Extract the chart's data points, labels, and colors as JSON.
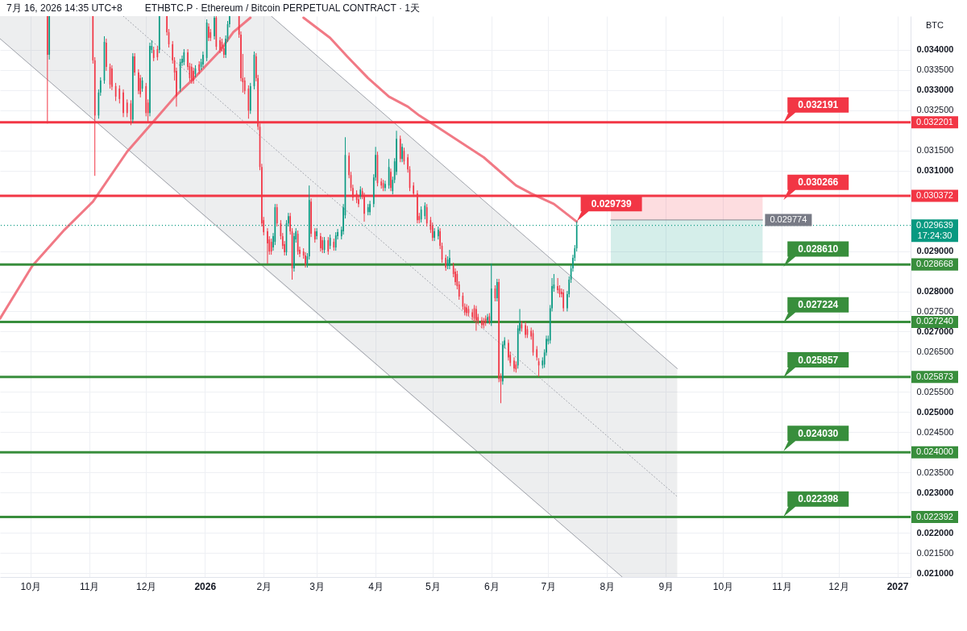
{
  "chart_data": {
    "type": "candlestick",
    "title": "ETHBTC.P · Ethereum / Bitcoin PERPETUAL CONTRACT · 1天",
    "ylabel": "BTC",
    "annotations": [
      "7月 16, 2026 14:35 UTC+8",
      {
        "text": "0.029739",
        "x": "2026-07-16",
        "y": 0.029739
      },
      {
        "text": "17:24:30",
        "x": "2027-01-08",
        "y": 0.029639
      },
      {
        "text": "0.032191",
        "x": "2026-11-02",
        "y": 0.032191
      },
      {
        "text": "0.030266",
        "x": "2026-11-02",
        "y": 0.030266
      },
      {
        "text": "0.028610",
        "x": "2026-11-02",
        "y": 0.02861
      },
      {
        "text": "0.027224",
        "x": "2026-11-02",
        "y": 0.027224
      },
      {
        "text": "0.025857",
        "x": "2026-11-02",
        "y": 0.025857
      },
      {
        "text": "0.024030",
        "x": "2026-11-02",
        "y": 0.02403
      },
      {
        "text": "0.022398",
        "x": "2026-11-02",
        "y": 0.022398
      }
    ],
    "xlim": [
      "2025-09-15",
      "2027-01-08"
    ],
    "ylim": [
      0.0209,
      0.03484
    ],
    "xticks": [
      {
        "value": "2025-10-01",
        "label": "10月"
      },
      {
        "value": "2025-11-01",
        "label": "11月"
      },
      {
        "value": "2025-12-01",
        "label": "12月"
      },
      {
        "value": "2026-01-01",
        "label": "2026"
      },
      {
        "value": "2026-02-01",
        "label": "2月"
      },
      {
        "value": "2026-03-01",
        "label": "3月"
      },
      {
        "value": "2026-04-01",
        "label": "4月"
      },
      {
        "value": "2026-05-01",
        "label": "5月"
      },
      {
        "value": "2026-06-01",
        "label": "6月"
      },
      {
        "value": "2026-07-01",
        "label": "7月"
      },
      {
        "value": "2026-08-01",
        "label": "8月"
      },
      {
        "value": "2026-09-01",
        "label": "9月"
      },
      {
        "value": "2026-10-01",
        "label": "10月"
      },
      {
        "value": "2026-11-01",
        "label": "11月"
      },
      {
        "value": "2026-12-01",
        "label": "12月"
      },
      {
        "value": "2027-01-01",
        "label": "2027"
      }
    ],
    "yticks": [
      {
        "value": 0.034,
        "label": "0.034000"
      },
      {
        "value": 0.0335,
        "label": "0.033500"
      },
      {
        "value": 0.033,
        "label": "0.033000"
      },
      {
        "value": 0.0325,
        "label": "0.032500"
      },
      {
        "value": 0.0315,
        "label": "0.031500"
      },
      {
        "value": 0.031,
        "label": "0.031000"
      },
      {
        "value": 0.029,
        "label": "0.029000"
      },
      {
        "value": 0.028,
        "label": "0.028000"
      },
      {
        "value": 0.0275,
        "label": "0.027500"
      },
      {
        "value": 0.027,
        "label": "0.027000"
      },
      {
        "value": 0.0265,
        "label": "0.026500"
      },
      {
        "value": 0.0255,
        "label": "0.025500"
      },
      {
        "value": 0.025,
        "label": "0.025000"
      },
      {
        "value": 0.0245,
        "label": "0.024500"
      },
      {
        "value": 0.0235,
        "label": "0.023500"
      },
      {
        "value": 0.023,
        "label": "0.023000"
      },
      {
        "value": 0.022,
        "label": "0.022000"
      },
      {
        "value": 0.0215,
        "label": "0.021500"
      },
      {
        "value": 0.021,
        "label": "0.021000"
      }
    ],
    "grid": true,
    "x": [
      "2025-10-10",
      "2025-10-11",
      "2025-11-03",
      "2025-11-04",
      "2025-11-06",
      "2025-11-07",
      "2025-11-09",
      "2025-11-10",
      "2025-11-12",
      "2025-11-13",
      "2025-11-15",
      "2025-11-17",
      "2025-11-19",
      "2025-11-21",
      "2025-11-23",
      "2025-11-24",
      "2025-11-25",
      "2025-11-27",
      "2025-11-28",
      "2025-11-29",
      "2025-12-01",
      "2025-12-02",
      "2025-12-03",
      "2025-12-04",
      "2025-12-05",
      "2025-12-07",
      "2025-12-08",
      "2025-12-12",
      "2025-12-13",
      "2025-12-15",
      "2025-12-16",
      "2025-12-17",
      "2025-12-19",
      "2025-12-20",
      "2025-12-21",
      "2025-12-23",
      "2025-12-24",
      "2025-12-25",
      "2025-12-26",
      "2025-12-27",
      "2025-12-29",
      "2025-12-30",
      "2025-12-31",
      "2026-01-02",
      "2026-01-03",
      "2026-01-04",
      "2026-01-06",
      "2026-01-07",
      "2026-01-09",
      "2026-01-10",
      "2026-01-11",
      "2026-01-12",
      "2026-01-13",
      "2026-01-14",
      "2026-01-19",
      "2026-01-20",
      "2026-01-21",
      "2026-01-22",
      "2026-01-24",
      "2026-01-25",
      "2026-01-27",
      "2026-01-28",
      "2026-01-29",
      "2026-01-30",
      "2026-01-31",
      "2026-02-01",
      "2026-02-03",
      "2026-02-04",
      "2026-02-05",
      "2026-02-06",
      "2026-02-07",
      "2026-02-08",
      "2026-02-10",
      "2026-02-11",
      "2026-02-12",
      "2026-02-13",
      "2026-02-14",
      "2026-02-15",
      "2026-02-16",
      "2026-02-17",
      "2026-02-18",
      "2026-02-19",
      "2026-02-20",
      "2026-02-22",
      "2026-02-23",
      "2026-02-24",
      "2026-02-25",
      "2026-02-26",
      "2026-02-28",
      "2026-03-01",
      "2026-03-03",
      "2026-03-04",
      "2026-03-05",
      "2026-03-07",
      "2026-03-08",
      "2026-03-10",
      "2026-03-11",
      "2026-03-12",
      "2026-03-14",
      "2026-03-15",
      "2026-03-16",
      "2026-03-18",
      "2026-03-19",
      "2026-03-20",
      "2026-03-22",
      "2026-03-23",
      "2026-03-24",
      "2026-03-25",
      "2026-03-26",
      "2026-03-28",
      "2026-03-29",
      "2026-03-31",
      "2026-04-01",
      "2026-04-02",
      "2026-04-04",
      "2026-04-05",
      "2026-04-06",
      "2026-04-08",
      "2026-04-09",
      "2026-04-10",
      "2026-04-11",
      "2026-04-12",
      "2026-04-14",
      "2026-04-15",
      "2026-04-16",
      "2026-04-18",
      "2026-04-19",
      "2026-04-21",
      "2026-04-23",
      "2026-04-24",
      "2026-04-25",
      "2026-04-27",
      "2026-04-28",
      "2026-04-30",
      "2026-05-01",
      "2026-05-02",
      "2026-05-04",
      "2026-05-05",
      "2026-05-06",
      "2026-05-08",
      "2026-05-09",
      "2026-05-10",
      "2026-05-12",
      "2026-05-13",
      "2026-05-14",
      "2026-05-15",
      "2026-05-17",
      "2026-05-18",
      "2026-05-19",
      "2026-05-20",
      "2026-05-22",
      "2026-05-23",
      "2026-05-24",
      "2026-05-25",
      "2026-05-27",
      "2026-05-28",
      "2026-05-29",
      "2026-05-30",
      "2026-05-31",
      "2026-06-01",
      "2026-06-03",
      "2026-06-04",
      "2026-06-05",
      "2026-06-06",
      "2026-06-07",
      "2026-06-08",
      "2026-06-10",
      "2026-06-11",
      "2026-06-13",
      "2026-06-14",
      "2026-06-15",
      "2026-06-16",
      "2026-06-17",
      "2026-06-19",
      "2026-06-20",
      "2026-06-22",
      "2026-06-23",
      "2026-06-25",
      "2026-06-26",
      "2026-06-28",
      "2026-06-29",
      "2026-06-30",
      "2026-07-01",
      "2026-07-02",
      "2026-07-03",
      "2026-07-04",
      "2026-07-06",
      "2026-07-07",
      "2026-07-08",
      "2026-07-09",
      "2026-07-11",
      "2026-07-12",
      "2026-07-13",
      "2026-07-14",
      "2026-07-15",
      "2026-07-16"
    ],
    "ohlc": [
      [
        0.03484,
        0.03484,
        0.03217,
        0.03388
      ],
      [
        0.03388,
        0.03484,
        0.03376,
        0.03484
      ],
      [
        0.03484,
        0.03484,
        0.03366,
        0.03374
      ],
      [
        0.03374,
        0.03382,
        0.03087,
        0.03237
      ],
      [
        0.03237,
        0.03302,
        0.03229,
        0.03294
      ],
      [
        0.03294,
        0.03332,
        0.03286,
        0.03324
      ],
      [
        0.03324,
        0.03434,
        0.03316,
        0.0342
      ],
      [
        0.03418,
        0.03428,
        0.03348,
        0.03358
      ],
      [
        0.03358,
        0.03366,
        0.03304,
        0.03314
      ],
      [
        0.03354,
        0.03362,
        0.033,
        0.03308
      ],
      [
        0.0331,
        0.03318,
        0.03273,
        0.03284
      ],
      [
        0.03304,
        0.03312,
        0.03267,
        0.03278
      ],
      [
        0.03294,
        0.03302,
        0.03233,
        0.03243
      ],
      [
        0.03269,
        0.03277,
        0.03233,
        0.03243
      ],
      [
        0.03267,
        0.03275,
        0.03213,
        0.03227
      ],
      [
        0.03227,
        0.03392,
        0.03219,
        0.03384
      ],
      [
        0.03384,
        0.03392,
        0.03336,
        0.03344
      ],
      [
        0.03344,
        0.03352,
        0.0329,
        0.03298
      ],
      [
        0.0333,
        0.03338,
        0.03282,
        0.0329
      ],
      [
        0.03304,
        0.03332,
        0.03296,
        0.03324
      ],
      [
        0.0331,
        0.03318,
        0.03235,
        0.03243
      ],
      [
        0.03269,
        0.03277,
        0.03219,
        0.03243
      ],
      [
        0.03243,
        0.03418,
        0.03235,
        0.0341
      ],
      [
        0.034,
        0.03424,
        0.03392,
        0.0341
      ],
      [
        0.034,
        0.03408,
        0.03372,
        0.0338
      ],
      [
        0.03402,
        0.0341,
        0.03374,
        0.03382
      ],
      [
        0.034,
        0.03484,
        0.03392,
        0.03484
      ],
      [
        0.03484,
        0.03484,
        0.03436,
        0.03444
      ],
      [
        0.03444,
        0.03452,
        0.03406,
        0.03414
      ],
      [
        0.03414,
        0.03422,
        0.03366,
        0.03374
      ],
      [
        0.03374,
        0.03382,
        0.03324,
        0.03344
      ],
      [
        0.03348,
        0.03356,
        0.03259,
        0.03284
      ],
      [
        0.03304,
        0.03378,
        0.03296,
        0.0337
      ],
      [
        0.03368,
        0.03386,
        0.0336,
        0.03378
      ],
      [
        0.0337,
        0.03402,
        0.03362,
        0.03394
      ],
      [
        0.03394,
        0.03402,
        0.0335,
        0.03358
      ],
      [
        0.0336,
        0.03368,
        0.03322,
        0.0333
      ],
      [
        0.03358,
        0.03366,
        0.03316,
        0.03324
      ],
      [
        0.03348,
        0.03356,
        0.03316,
        0.03324
      ],
      [
        0.0334,
        0.03362,
        0.03332,
        0.03354
      ],
      [
        0.03364,
        0.03372,
        0.0334,
        0.03348
      ],
      [
        0.03358,
        0.03378,
        0.0335,
        0.0337
      ],
      [
        0.03364,
        0.03396,
        0.03356,
        0.03388
      ],
      [
        0.0338,
        0.03476,
        0.03372,
        0.03468
      ],
      [
        0.03458,
        0.03466,
        0.03422,
        0.0343
      ],
      [
        0.03444,
        0.03452,
        0.03422,
        0.0343
      ],
      [
        0.03434,
        0.03484,
        0.03426,
        0.0348
      ],
      [
        0.0348,
        0.03484,
        0.034,
        0.03408
      ],
      [
        0.03424,
        0.03432,
        0.03392,
        0.034
      ],
      [
        0.0342,
        0.03428,
        0.03396,
        0.03404
      ],
      [
        0.03404,
        0.03412,
        0.0338,
        0.03388
      ],
      [
        0.03388,
        0.03436,
        0.0338,
        0.03428
      ],
      [
        0.03428,
        0.03472,
        0.0342,
        0.03464
      ],
      [
        0.03464,
        0.03484,
        0.03456,
        0.03484
      ],
      [
        0.03484,
        0.03484,
        0.0343,
        0.03438
      ],
      [
        0.03438,
        0.03446,
        0.03322,
        0.0333
      ],
      [
        0.0333,
        0.0339,
        0.03294,
        0.0332
      ],
      [
        0.03324,
        0.03332,
        0.0329,
        0.03298
      ],
      [
        0.03304,
        0.03312,
        0.03229,
        0.03249
      ],
      [
        0.03249,
        0.03318,
        0.03241,
        0.0331
      ],
      [
        0.0331,
        0.03396,
        0.03302,
        0.03388
      ],
      [
        0.03384,
        0.03392,
        0.03322,
        0.0333
      ],
      [
        0.0333,
        0.03338,
        0.03201,
        0.03209
      ],
      [
        0.03209,
        0.03217,
        0.03101,
        0.03109
      ],
      [
        0.03109,
        0.03117,
        0.02961,
        0.02969
      ],
      [
        0.02977,
        0.02985,
        0.02939,
        0.02947
      ],
      [
        0.02949,
        0.02957,
        0.02869,
        0.02919
      ],
      [
        0.02929,
        0.02937,
        0.02891,
        0.02899
      ],
      [
        0.02923,
        0.02931,
        0.02891,
        0.02899
      ],
      [
        0.02909,
        0.02945,
        0.02901,
        0.02937
      ],
      [
        0.02923,
        0.03017,
        0.02915,
        0.03009
      ],
      [
        0.03009,
        0.03017,
        0.02961,
        0.02969
      ],
      [
        0.02969,
        0.02977,
        0.02929,
        0.02937
      ],
      [
        0.02937,
        0.02945,
        0.02905,
        0.02913
      ],
      [
        0.02917,
        0.02925,
        0.02889,
        0.02897
      ],
      [
        0.02897,
        0.02977,
        0.02889,
        0.02969
      ],
      [
        0.02969,
        0.02995,
        0.02961,
        0.02987
      ],
      [
        0.02987,
        0.02995,
        0.02941,
        0.02949
      ],
      [
        0.02949,
        0.02957,
        0.02829,
        0.02857
      ],
      [
        0.02857,
        0.02945,
        0.02849,
        0.02937
      ],
      [
        0.02929,
        0.02957,
        0.02921,
        0.02949
      ],
      [
        0.02943,
        0.02951,
        0.02891,
        0.02899
      ],
      [
        0.02903,
        0.02911,
        0.02885,
        0.02893
      ],
      [
        0.02899,
        0.02907,
        0.02881,
        0.02889
      ],
      [
        0.02889,
        0.02897,
        0.02859,
        0.02867
      ],
      [
        0.02867,
        0.02895,
        0.02859,
        0.02887
      ],
      [
        0.02887,
        0.03063,
        0.02879,
        0.03027
      ],
      [
        0.03023,
        0.03031,
        0.02935,
        0.02943
      ],
      [
        0.02949,
        0.02957,
        0.02921,
        0.02929
      ],
      [
        0.02937,
        0.02957,
        0.02929,
        0.02949
      ],
      [
        0.02937,
        0.02945,
        0.02899,
        0.02907
      ],
      [
        0.02927,
        0.02935,
        0.02895,
        0.02903
      ],
      [
        0.02903,
        0.02935,
        0.02895,
        0.02927
      ],
      [
        0.02927,
        0.02935,
        0.02891,
        0.02899
      ],
      [
        0.02913,
        0.02941,
        0.02905,
        0.02933
      ],
      [
        0.02923,
        0.02931,
        0.02901,
        0.02909
      ],
      [
        0.02909,
        0.02947,
        0.02901,
        0.02939
      ],
      [
        0.02937,
        0.02955,
        0.02929,
        0.02947
      ],
      [
        0.02937,
        0.02961,
        0.02929,
        0.02953
      ],
      [
        0.02949,
        0.03017,
        0.02941,
        0.03009
      ],
      [
        0.02989,
        0.03183,
        0.02981,
        0.03139
      ],
      [
        0.03137,
        0.03145,
        0.03081,
        0.03089
      ],
      [
        0.03089,
        0.03097,
        0.03049,
        0.03057
      ],
      [
        0.03057,
        0.03065,
        0.03025,
        0.03033
      ],
      [
        0.03043,
        0.03051,
        0.03019,
        0.03027
      ],
      [
        0.03029,
        0.03037,
        0.03009,
        0.03017
      ],
      [
        0.03037,
        0.03061,
        0.03029,
        0.03053
      ],
      [
        0.03049,
        0.03057,
        0.03029,
        0.03037
      ],
      [
        0.03037,
        0.03045,
        0.02973,
        0.02993
      ],
      [
        0.02997,
        0.03017,
        0.02989,
        0.03009
      ],
      [
        0.02997,
        0.03025,
        0.02989,
        0.03017
      ],
      [
        0.03017,
        0.03091,
        0.03009,
        0.03083
      ],
      [
        0.03083,
        0.03159,
        0.03075,
        0.03139
      ],
      [
        0.03139,
        0.03147,
        0.03061,
        0.03069
      ],
      [
        0.03073,
        0.03081,
        0.03055,
        0.03063
      ],
      [
        0.03069,
        0.03077,
        0.03049,
        0.03057
      ],
      [
        0.03057,
        0.03075,
        0.03049,
        0.03067
      ],
      [
        0.03063,
        0.03129,
        0.03055,
        0.03109
      ],
      [
        0.03097,
        0.03105,
        0.03049,
        0.03057
      ],
      [
        0.03049,
        0.03085,
        0.03041,
        0.03077
      ],
      [
        0.03077,
        0.03131,
        0.03069,
        0.03123
      ],
      [
        0.03097,
        0.03199,
        0.03089,
        0.03179
      ],
      [
        0.03179,
        0.03187,
        0.03121,
        0.03129
      ],
      [
        0.03129,
        0.03167,
        0.03121,
        0.03159
      ],
      [
        0.03149,
        0.03157,
        0.03115,
        0.03123
      ],
      [
        0.03133,
        0.03141,
        0.03095,
        0.03103
      ],
      [
        0.03103,
        0.03111,
        0.03049,
        0.03057
      ],
      [
        0.03063,
        0.03071,
        0.03035,
        0.03043
      ],
      [
        0.03043,
        0.03051,
        0.02969,
        0.02977
      ],
      [
        0.02987,
        0.02995,
        0.02969,
        0.02977
      ],
      [
        0.02979,
        0.03011,
        0.02971,
        0.03003
      ],
      [
        0.02987,
        0.03021,
        0.02979,
        0.03013
      ],
      [
        0.03009,
        0.03017,
        0.02961,
        0.02969
      ],
      [
        0.02977,
        0.02985,
        0.02945,
        0.02953
      ],
      [
        0.02963,
        0.02971,
        0.02925,
        0.02933
      ],
      [
        0.02933,
        0.02957,
        0.02925,
        0.02949
      ],
      [
        0.02937,
        0.02961,
        0.02929,
        0.02953
      ],
      [
        0.02949,
        0.02957,
        0.02905,
        0.02913
      ],
      [
        0.02913,
        0.02921,
        0.02871,
        0.02879
      ],
      [
        0.02883,
        0.02891,
        0.02851,
        0.02859
      ],
      [
        0.02863,
        0.02887,
        0.02855,
        0.02879
      ],
      [
        0.02863,
        0.02903,
        0.02855,
        0.02883
      ],
      [
        0.02863,
        0.02871,
        0.02835,
        0.02843
      ],
      [
        0.02849,
        0.02857,
        0.02815,
        0.02823
      ],
      [
        0.02843,
        0.02851,
        0.02805,
        0.02813
      ],
      [
        0.02817,
        0.02825,
        0.02779,
        0.02787
      ],
      [
        0.02789,
        0.02797,
        0.02754,
        0.02762
      ],
      [
        0.02762,
        0.0277,
        0.0274,
        0.02748
      ],
      [
        0.0276,
        0.02768,
        0.02738,
        0.02746
      ],
      [
        0.02756,
        0.02764,
        0.02738,
        0.02746
      ],
      [
        0.02748,
        0.02756,
        0.02728,
        0.02736
      ],
      [
        0.02758,
        0.02766,
        0.02724,
        0.02732
      ],
      [
        0.02756,
        0.02764,
        0.02702,
        0.02728
      ],
      [
        0.02736,
        0.02744,
        0.02718,
        0.02726
      ],
      [
        0.02728,
        0.02736,
        0.02708,
        0.02716
      ],
      [
        0.02726,
        0.02734,
        0.02708,
        0.02716
      ],
      [
        0.02732,
        0.0274,
        0.02714,
        0.02722
      ],
      [
        0.02728,
        0.02744,
        0.0272,
        0.02736
      ],
      [
        0.02738,
        0.02746,
        0.02718,
        0.02726
      ],
      [
        0.02722,
        0.02869,
        0.02714,
        0.02807
      ],
      [
        0.02807,
        0.02815,
        0.02775,
        0.02783
      ],
      [
        0.02783,
        0.02831,
        0.02775,
        0.02823
      ],
      [
        0.02823,
        0.02831,
        0.02574,
        0.02582
      ],
      [
        0.02588,
        0.02596,
        0.02522,
        0.02576
      ],
      [
        0.02576,
        0.02676,
        0.02568,
        0.02668
      ],
      [
        0.02666,
        0.02686,
        0.02658,
        0.02678
      ],
      [
        0.02672,
        0.0268,
        0.02628,
        0.02636
      ],
      [
        0.02642,
        0.0265,
        0.02614,
        0.02622
      ],
      [
        0.02628,
        0.02636,
        0.026,
        0.02608
      ],
      [
        0.02618,
        0.02626,
        0.02598,
        0.02606
      ],
      [
        0.02616,
        0.02716,
        0.02608,
        0.02708
      ],
      [
        0.02702,
        0.02756,
        0.02694,
        0.02722
      ],
      [
        0.02718,
        0.02726,
        0.027,
        0.02708
      ],
      [
        0.02716,
        0.02724,
        0.02684,
        0.02692
      ],
      [
        0.02706,
        0.02714,
        0.02684,
        0.02692
      ],
      [
        0.02702,
        0.0271,
        0.0268,
        0.02688
      ],
      [
        0.02696,
        0.02704,
        0.0264,
        0.02648
      ],
      [
        0.02656,
        0.02664,
        0.02628,
        0.02636
      ],
      [
        0.02626,
        0.02634,
        0.02588,
        0.02616
      ],
      [
        0.02616,
        0.02636,
        0.02608,
        0.02628
      ],
      [
        0.02618,
        0.02656,
        0.0261,
        0.02648
      ],
      [
        0.02648,
        0.0269,
        0.0264,
        0.02682
      ],
      [
        0.02676,
        0.0269,
        0.02668,
        0.02682
      ],
      [
        0.02678,
        0.02766,
        0.0267,
        0.02758
      ],
      [
        0.02758,
        0.02833,
        0.0275,
        0.02813
      ],
      [
        0.02807,
        0.02843,
        0.02799,
        0.02817
      ],
      [
        0.02813,
        0.02833,
        0.02795,
        0.02803
      ],
      [
        0.02807,
        0.02815,
        0.02785,
        0.02793
      ],
      [
        0.02799,
        0.02807,
        0.02785,
        0.02793
      ],
      [
        0.02797,
        0.02805,
        0.0275,
        0.02758
      ],
      [
        0.02758,
        0.02801,
        0.0275,
        0.02793
      ],
      [
        0.02793,
        0.02837,
        0.02785,
        0.02829
      ],
      [
        0.02829,
        0.02865,
        0.02821,
        0.02857
      ],
      [
        0.02857,
        0.02891,
        0.02849,
        0.02883
      ],
      [
        0.02883,
        0.02915,
        0.02875,
        0.02907
      ],
      [
        0.02907,
        0.029739,
        0.02899,
        0.029639
      ]
    ],
    "colors": [
      "#f23645",
      "#089981",
      "#f23645",
      "#f23645",
      "#089981",
      "#089981",
      "#089981",
      "#f23645",
      "#f23645",
      "#f23645",
      "#f23645",
      "#f23645",
      "#f23645",
      "#f23645",
      "#f23645",
      "#089981",
      "#f23645",
      "#f23645",
      "#f23645",
      "#089981",
      "#f23645",
      "#f23645",
      "#089981",
      "#089981",
      "#f23645",
      "#f23645",
      "#089981",
      "#f23645",
      "#f23645",
      "#f23645",
      "#f23645",
      "#f23645",
      "#089981",
      "#089981",
      "#089981",
      "#f23645",
      "#f23645",
      "#f23645",
      "#f23645",
      "#089981",
      "#f23645",
      "#089981",
      "#089981",
      "#089981",
      "#f23645",
      "#f23645",
      "#089981",
      "#f23645",
      "#f23645",
      "#f23645",
      "#f23645",
      "#089981",
      "#089981",
      "#089981",
      "#f23645",
      "#f23645",
      "#f23645",
      "#f23645",
      "#f23645",
      "#089981",
      "#089981",
      "#f23645",
      "#f23645",
      "#f23645",
      "#f23645",
      "#f23645",
      "#f23645",
      "#f23645",
      "#f23645",
      "#089981",
      "#089981",
      "#f23645",
      "#f23645",
      "#f23645",
      "#f23645",
      "#089981",
      "#089981",
      "#f23645",
      "#f23645",
      "#089981",
      "#089981",
      "#f23645",
      "#f23645",
      "#f23645",
      "#f23645",
      "#089981",
      "#089981",
      "#f23645",
      "#f23645",
      "#089981",
      "#f23645",
      "#f23645",
      "#089981",
      "#f23645",
      "#089981",
      "#f23645",
      "#089981",
      "#089981",
      "#089981",
      "#089981",
      "#089981",
      "#f23645",
      "#f23645",
      "#f23645",
      "#f23645",
      "#f23645",
      "#089981",
      "#f23645",
      "#f23645",
      "#089981",
      "#089981",
      "#089981",
      "#089981",
      "#f23645",
      "#f23645",
      "#f23645",
      "#089981",
      "#089981",
      "#f23645",
      "#089981",
      "#089981",
      "#089981",
      "#f23645",
      "#089981",
      "#f23645",
      "#f23645",
      "#f23645",
      "#f23645",
      "#f23645",
      "#f23645",
      "#089981",
      "#089981",
      "#f23645",
      "#f23645",
      "#f23645",
      "#089981",
      "#089981",
      "#f23645",
      "#f23645",
      "#f23645",
      "#089981",
      "#089981",
      "#f23645",
      "#f23645",
      "#f23645",
      "#f23645",
      "#f23645",
      "#f23645",
      "#f23645",
      "#f23645",
      "#f23645",
      "#f23645",
      "#f23645",
      "#f23645",
      "#f23645",
      "#f23645",
      "#f23645",
      "#089981",
      "#f23645",
      "#089981",
      "#f23645",
      "#089981",
      "#f23645",
      "#f23645",
      "#089981",
      "#089981",
      "#f23645",
      "#f23645",
      "#f23645",
      "#f23645",
      "#089981",
      "#089981",
      "#f23645",
      "#f23645",
      "#f23645",
      "#f23645",
      "#f23645",
      "#f23645",
      "#f23645",
      "#089981",
      "#089981",
      "#089981",
      "#089981",
      "#089981",
      "#089981",
      "#089981",
      "#f23645",
      "#f23645",
      "#f23645",
      "#f23645",
      "#089981",
      "#089981",
      "#089981",
      "#089981",
      "#089981",
      "#089981"
    ],
    "series": [
      {
        "type": "line",
        "color": "#9598a1",
        "line_style": "dotted",
        "x": [
          "2025-09-15",
          "2025-11-19",
          "2026-02-05",
          "2026-08-09",
          "2026-09-07"
        ],
        "values": [
          null,
          0.03484,
          0.03162,
          0.02408,
          0.0229
        ],
        "upper": [
          0.03484,
          0.03484,
          0.03484,
          0.02726,
          0.02608
        ],
        "lower": [
          0.03428,
          0.03162,
          0.02841,
          0.0209,
          0.0209
        ]
      },
      {
        "type": "line",
        "color": "#9598a1",
        "x": [
          "2026-02-05",
          "2026-09-07"
        ],
        "values": [
          0.03484,
          0.02608
        ]
      },
      {
        "type": "line",
        "color": "#9598a1",
        "x": [
          "2025-09-15",
          "2026-08-09"
        ],
        "values": [
          0.03428,
          0.0209
        ]
      },
      {
        "type": "line",
        "color": "#f06a78",
        "x": [
          "2025-09-15",
          "2025-10-02",
          "2025-10-19",
          "2025-11-03",
          "2025-11-21",
          "2025-12-04",
          "2025-12-17",
          "2025-12-26",
          "2026-01-09",
          "2026-01-16",
          "2026-01-25",
          "2026-02-10",
          "2026-02-22",
          "2026-03-08",
          "2026-03-17",
          "2026-03-28",
          "2026-04-08",
          "2026-04-18",
          "2026-04-24",
          "2026-05-02",
          "2026-05-28",
          "2026-06-14",
          "2026-06-22",
          "2026-07-04",
          "2026-07-16"
        ],
        "values": [
          0.02732,
          0.02863,
          0.02953,
          0.03023,
          0.03147,
          0.03217,
          0.03288,
          0.03328,
          0.03398,
          0.03444,
          0.0348,
          null,
          0.0348,
          0.0343,
          0.03384,
          0.0333,
          0.03284,
          0.03259,
          0.03237,
          0.03213,
          0.03133,
          0.03063,
          0.03043,
          0.03017,
          0.02973
        ]
      },
      {
        "type": "line",
        "color": "#f23645",
        "x": [
          "2026-08-03",
          "2026-10-22"
        ],
        "values": [
          null,
          null
        ],
        "upper": [
          0.030372,
          0.030372
        ],
        "lower": [
          0.029774,
          0.029774
        ]
      },
      {
        "type": "line",
        "color": "#089981",
        "x": [
          "2026-08-03",
          "2026-10-22"
        ],
        "values": [
          null,
          null
        ],
        "upper": [
          0.029774,
          0.029774
        ],
        "lower": [
          0.028668,
          0.028668
        ]
      },
      {
        "type": "line",
        "color": "#787b86",
        "x": [
          "2026-08-03",
          "2026-10-22"
        ],
        "values": [
          0.029774,
          0.029774
        ],
        "value_labels": [
          null,
          "0.029774"
        ]
      }
    ],
    "ref_lines": [
      {
        "axis": "y",
        "value": 0.032201,
        "label": "0.032201",
        "color": "#f23645"
      },
      {
        "axis": "y",
        "value": 0.030372,
        "label": "0.030372",
        "color": "#f23645"
      },
      {
        "axis": "y",
        "value": 0.029639,
        "label": "0.029639",
        "color": "#089981",
        "line_style": "dotted"
      },
      {
        "axis": "y",
        "value": 0.028668,
        "label": "0.028668",
        "color": "#388e3c"
      },
      {
        "axis": "y",
        "value": 0.02724,
        "label": "0.027240",
        "color": "#388e3c"
      },
      {
        "axis": "y",
        "value": 0.025873,
        "label": "0.025873",
        "color": "#388e3c"
      },
      {
        "axis": "y",
        "value": 0.024,
        "label": "0.024000",
        "color": "#388e3c"
      },
      {
        "axis": "y",
        "value": 0.022392,
        "label": "0.022392",
        "color": "#388e3c"
      }
    ]
  }
}
